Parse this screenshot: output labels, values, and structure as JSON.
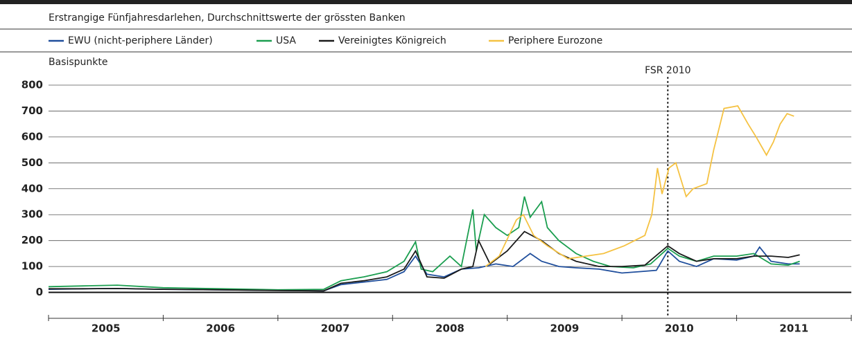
{
  "chart_data": {
    "type": "line",
    "subtitle": "Erstrangige Fünfjahresdarlehen, Durchschnittswerte der grössten Banken",
    "y_label": "Basispunkte",
    "xlim": [
      2005,
      2012
    ],
    "xtick_marks": [
      2005,
      2006,
      2007,
      2008,
      2009,
      2010,
      2011,
      2012
    ],
    "xticks": [
      {
        "value": 2005.5,
        "label": "2005"
      },
      {
        "value": 2006.5,
        "label": "2006"
      },
      {
        "value": 2007.5,
        "label": "2007"
      },
      {
        "value": 2008.5,
        "label": "2008"
      },
      {
        "value": 2009.5,
        "label": "2009"
      },
      {
        "value": 2010.5,
        "label": "2010"
      },
      {
        "value": 2011.5,
        "label": "2011"
      }
    ],
    "ylim": [
      -100,
      800
    ],
    "yticks": [
      0,
      100,
      200,
      300,
      400,
      500,
      600,
      700,
      800
    ],
    "grid": true,
    "annotations": [
      {
        "text": "FSR 2010",
        "x": 2010.4
      }
    ],
    "series": [
      {
        "name": "EWU (nicht-periphere Länder)",
        "color": "#1f4e9c",
        "x": [
          2005.0,
          2005.3,
          2005.6,
          2006.0,
          2006.5,
          2007.0,
          2007.4,
          2007.55,
          2007.75,
          2007.95,
          2008.1,
          2008.2,
          2008.3,
          2008.45,
          2008.6,
          2008.75,
          2008.9,
          2009.05,
          2009.2,
          2009.3,
          2009.45,
          2009.6,
          2009.8,
          2010.0,
          2010.15,
          2010.3,
          2010.4,
          2010.5,
          2010.65,
          2010.8,
          2011.0,
          2011.15,
          2011.2,
          2011.3,
          2011.45,
          2011.55
        ],
        "values": [
          12,
          14,
          15,
          12,
          10,
          8,
          6,
          30,
          40,
          50,
          80,
          140,
          70,
          60,
          90,
          95,
          110,
          100,
          150,
          120,
          100,
          95,
          90,
          75,
          80,
          85,
          160,
          120,
          100,
          130,
          125,
          140,
          175,
          120,
          110,
          110
        ]
      },
      {
        "name": "USA",
        "color": "#1a9e4f",
        "x": [
          2005.0,
          2005.3,
          2005.6,
          2006.0,
          2006.5,
          2007.0,
          2007.4,
          2007.55,
          2007.75,
          2007.95,
          2008.1,
          2008.2,
          2008.25,
          2008.35,
          2008.5,
          2008.6,
          2008.7,
          2008.73,
          2008.8,
          2008.9,
          2009.0,
          2009.1,
          2009.15,
          2009.2,
          2009.3,
          2009.35,
          2009.45,
          2009.6,
          2009.75,
          2009.9,
          2010.1,
          2010.25,
          2010.4,
          2010.5,
          2010.65,
          2010.8,
          2011.0,
          2011.15,
          2011.3,
          2011.45,
          2011.55
        ],
        "values": [
          22,
          25,
          28,
          18,
          14,
          10,
          12,
          45,
          60,
          80,
          120,
          195,
          90,
          80,
          140,
          100,
          320,
          160,
          300,
          250,
          220,
          250,
          370,
          290,
          350,
          250,
          200,
          150,
          120,
          100,
          95,
          110,
          170,
          140,
          120,
          140,
          140,
          150,
          110,
          105,
          120
        ]
      },
      {
        "name": "Vereinigtes Königreich",
        "color": "#1a1a1a",
        "x": [
          2005.0,
          2005.3,
          2005.6,
          2006.0,
          2006.5,
          2007.0,
          2007.4,
          2007.55,
          2007.75,
          2007.95,
          2008.1,
          2008.2,
          2008.3,
          2008.45,
          2008.6,
          2008.7,
          2008.75,
          2008.85,
          2009.0,
          2009.15,
          2009.3,
          2009.45,
          2009.6,
          2009.8,
          2010.0,
          2010.2,
          2010.4,
          2010.5,
          2010.65,
          2010.8,
          2011.0,
          2011.15,
          2011.3,
          2011.45,
          2011.55
        ],
        "values": [
          14,
          14,
          15,
          12,
          10,
          7,
          6,
          35,
          45,
          60,
          90,
          160,
          60,
          55,
          90,
          100,
          200,
          110,
          160,
          235,
          200,
          150,
          120,
          100,
          100,
          105,
          180,
          150,
          120,
          130,
          130,
          140,
          140,
          135,
          145
        ]
      },
      {
        "name": "Periphere Eurozone",
        "color": "#f5c242",
        "x": [
          2008.81,
          2008.93,
          2009.08,
          2009.14,
          2009.23,
          2009.35,
          2009.53,
          2009.84,
          2010.02,
          2010.2,
          2010.26,
          2010.31,
          2010.35,
          2010.41,
          2010.47,
          2010.56,
          2010.62,
          2010.74,
          2010.8,
          2010.89,
          2011.01,
          2011.1,
          2011.17,
          2011.26,
          2011.32,
          2011.38,
          2011.44,
          2011.5
        ],
        "values": [
          100,
          140,
          280,
          300,
          220,
          180,
          130,
          150,
          180,
          220,
          300,
          480,
          380,
          480,
          500,
          370,
          400,
          420,
          550,
          710,
          720,
          650,
          600,
          530,
          580,
          650,
          690,
          680
        ]
      }
    ]
  }
}
